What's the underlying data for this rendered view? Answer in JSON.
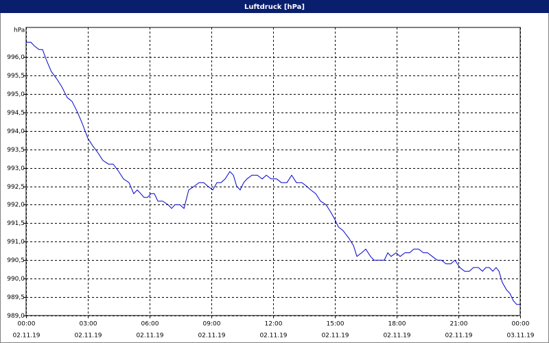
{
  "chart_data": {
    "type": "line",
    "title": "Luftdruck [hPa]",
    "y_label": "hPa",
    "x": [
      0,
      0.23,
      0.4,
      0.63,
      0.8,
      1.0,
      1.23,
      1.5,
      1.73,
      2.0,
      2.23,
      2.5,
      2.73,
      3.0,
      3.23,
      3.5,
      3.73,
      4.0,
      4.23,
      4.5,
      4.73,
      5.0,
      5.23,
      5.4,
      5.57,
      5.73,
      5.9,
      6.07,
      6.23,
      6.4,
      6.63,
      6.9,
      7.07,
      7.23,
      7.47,
      7.67,
      7.9,
      8.17,
      8.4,
      8.63,
      8.83,
      9.07,
      9.27,
      9.47,
      9.67,
      9.9,
      10.07,
      10.23,
      10.4,
      10.57,
      10.73,
      10.97,
      11.23,
      11.47,
      11.67,
      11.9,
      12.17,
      12.4,
      12.67,
      12.9,
      13.13,
      13.4,
      13.63,
      13.83,
      14.07,
      14.3,
      14.57,
      14.8,
      15.0,
      15.17,
      15.4,
      15.67,
      15.9,
      16.07,
      16.3,
      16.5,
      16.73,
      16.9,
      17.17,
      17.4,
      17.57,
      17.73,
      17.97,
      18.17,
      18.4,
      18.63,
      18.83,
      19.07,
      19.3,
      19.5,
      19.73,
      19.97,
      20.17,
      20.4,
      20.63,
      20.83,
      21.07,
      21.3,
      21.53,
      21.73,
      21.97,
      22.17,
      22.33,
      22.5,
      22.67,
      22.83,
      22.97,
      23.13,
      23.33,
      23.5,
      23.67,
      23.83,
      24.0
    ],
    "series": [
      {
        "color": "#0000cc",
        "values": [
          996.4,
          996.4,
          996.3,
          996.2,
          996.2,
          995.9,
          995.6,
          995.4,
          995.2,
          994.9,
          994.8,
          994.5,
          994.2,
          993.8,
          993.6,
          993.4,
          993.2,
          993.1,
          993.1,
          992.9,
          992.7,
          992.6,
          992.3,
          992.4,
          992.3,
          992.2,
          992.2,
          992.3,
          992.3,
          992.1,
          992.1,
          992.0,
          991.9,
          992.0,
          992.0,
          991.9,
          992.4,
          992.5,
          992.6,
          992.6,
          992.5,
          992.4,
          992.6,
          992.6,
          992.7,
          992.9,
          992.8,
          992.5,
          992.4,
          992.6,
          992.7,
          992.8,
          992.8,
          992.7,
          992.8,
          992.7,
          992.7,
          992.6,
          992.6,
          992.8,
          992.6,
          992.6,
          992.5,
          992.4,
          992.3,
          992.1,
          992.0,
          991.8,
          991.6,
          991.4,
          991.3,
          991.1,
          990.9,
          990.6,
          990.7,
          990.8,
          990.6,
          990.5,
          990.5,
          990.5,
          990.7,
          990.6,
          990.7,
          990.6,
          990.7,
          990.7,
          990.8,
          990.8,
          990.7,
          990.7,
          990.6,
          990.5,
          990.5,
          990.4,
          990.4,
          990.5,
          990.3,
          990.2,
          990.2,
          990.3,
          990.3,
          990.2,
          990.3,
          990.3,
          990.2,
          990.3,
          990.2,
          989.9,
          989.7,
          989.6,
          989.4,
          989.3,
          989.3
        ]
      }
    ],
    "xlim": [
      0,
      24
    ],
    "xticks": [
      {
        "value": 0,
        "label": "00:00"
      },
      {
        "value": 3,
        "label": "03:00"
      },
      {
        "value": 6,
        "label": "06:00"
      },
      {
        "value": 9,
        "label": "09:00"
      },
      {
        "value": 12,
        "label": "12:00"
      },
      {
        "value": 15,
        "label": "15:00"
      },
      {
        "value": 18,
        "label": "18:00"
      },
      {
        "value": 21,
        "label": "21:00"
      },
      {
        "value": 24,
        "label": "00:00"
      }
    ],
    "xtick_dates": [
      "02.11.19",
      "02.11.19",
      "02.11.19",
      "02.11.19",
      "02.11.19",
      "02.11.19",
      "02.11.19",
      "02.11.19",
      "03.11.19"
    ],
    "ylim": [
      989.0,
      996.8
    ],
    "yticks": [
      {
        "value": 989.0,
        "label": "989,0"
      },
      {
        "value": 989.5,
        "label": "989,5"
      },
      {
        "value": 990.0,
        "label": "990,0"
      },
      {
        "value": 990.5,
        "label": "990,5"
      },
      {
        "value": 991.0,
        "label": "991,0"
      },
      {
        "value": 991.5,
        "label": "991,5"
      },
      {
        "value": 992.0,
        "label": "992,0"
      },
      {
        "value": 992.5,
        "label": "992,5"
      },
      {
        "value": 993.0,
        "label": "993,0"
      },
      {
        "value": 993.5,
        "label": "993,5"
      },
      {
        "value": 994.0,
        "label": "994,0"
      },
      {
        "value": 994.5,
        "label": "994,5"
      },
      {
        "value": 995.0,
        "label": "995,0"
      },
      {
        "value": 995.5,
        "label": "995,5"
      },
      {
        "value": 996.0,
        "label": "996,0"
      }
    ],
    "grid": true
  }
}
